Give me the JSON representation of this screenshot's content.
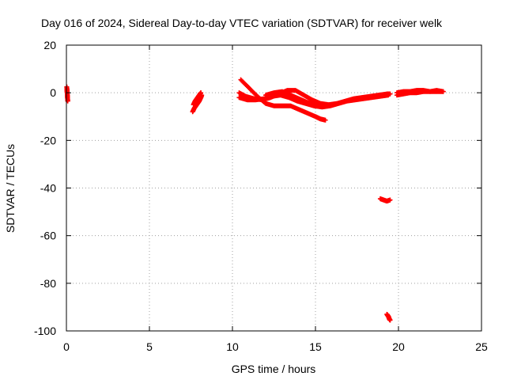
{
  "chart_data": {
    "type": "scatter",
    "title": "Day 016 of 2024, Sidereal Day-to-day VTEC variation (SDTVAR) for receiver welk",
    "xlabel": "GPS time / hours",
    "ylabel": "SDTVAR / TECUs",
    "xlim": [
      0,
      25
    ],
    "ylim": [
      -100,
      20
    ],
    "xticks": [
      0,
      5,
      10,
      15,
      20,
      25
    ],
    "yticks": [
      -100,
      -80,
      -60,
      -40,
      -20,
      0,
      20
    ],
    "grid": true,
    "marker": "+",
    "color": "#ff0000",
    "series": [
      {
        "segments": [
          [
            [
              0.02,
              2.5
            ],
            [
              0.03,
              1.5
            ],
            [
              0.04,
              0.5
            ],
            [
              0.05,
              -0.5
            ],
            [
              0.06,
              -1.5
            ],
            [
              0.07,
              -2.5
            ],
            [
              0.08,
              -3.5
            ]
          ],
          [
            [
              7.6,
              -8
            ],
            [
              7.7,
              -6.5
            ],
            [
              7.8,
              -5.5
            ],
            [
              7.9,
              -4.5
            ],
            [
              8.0,
              -3.5
            ],
            [
              8.1,
              -2
            ],
            [
              8.15,
              -1
            ]
          ],
          [
            [
              7.65,
              -5
            ],
            [
              7.75,
              -3.5
            ],
            [
              7.85,
              -2.5
            ],
            [
              7.95,
              -1.5
            ],
            [
              8.05,
              -0.5
            ],
            [
              8.1,
              0
            ]
          ],
          [
            [
              10.5,
              5.5
            ],
            [
              11.0,
              2
            ],
            [
              11.5,
              -1.5
            ],
            [
              12.0,
              -4.5
            ],
            [
              12.5,
              -5.5
            ],
            [
              13.0,
              -5.5
            ],
            [
              13.5,
              -5.5
            ],
            [
              14.0,
              -7
            ],
            [
              14.5,
              -8.5
            ],
            [
              15.0,
              -10
            ],
            [
              15.3,
              -11
            ],
            [
              15.6,
              -11.5
            ]
          ],
          [
            [
              10.4,
              0
            ],
            [
              10.8,
              -1.5
            ],
            [
              11.3,
              -2.5
            ],
            [
              11.8,
              -3
            ],
            [
              12.3,
              -2
            ],
            [
              12.8,
              -0.5
            ],
            [
              13.3,
              1
            ],
            [
              13.8,
              1
            ],
            [
              14.3,
              -1
            ],
            [
              14.8,
              -3
            ],
            [
              15.3,
              -4.5
            ],
            [
              15.8,
              -5
            ],
            [
              16.3,
              -4.5
            ],
            [
              16.8,
              -3.5
            ],
            [
              17.3,
              -2.5
            ],
            [
              17.8,
              -2
            ],
            [
              18.3,
              -1.5
            ],
            [
              18.8,
              -1
            ],
            [
              19.3,
              -0.5
            ],
            [
              19.5,
              -0.5
            ]
          ],
          [
            [
              10.4,
              -2
            ],
            [
              10.9,
              -3
            ],
            [
              11.4,
              -3
            ],
            [
              11.9,
              -2.5
            ],
            [
              12.4,
              -1.5
            ],
            [
              12.9,
              -1
            ],
            [
              13.4,
              -2
            ],
            [
              13.9,
              -3.5
            ],
            [
              14.4,
              -4.5
            ],
            [
              14.9,
              -5.5
            ],
            [
              15.4,
              -6
            ],
            [
              15.9,
              -5.5
            ],
            [
              16.4,
              -4.5
            ],
            [
              16.9,
              -3.5
            ],
            [
              17.4,
              -3
            ],
            [
              17.9,
              -2.5
            ],
            [
              18.4,
              -2
            ],
            [
              18.9,
              -1.5
            ],
            [
              19.4,
              -1
            ]
          ],
          [
            [
              12.0,
              -1
            ],
            [
              12.5,
              0
            ],
            [
              13.0,
              0.5
            ],
            [
              13.5,
              -1
            ],
            [
              14.0,
              -2.5
            ],
            [
              14.5,
              -4
            ],
            [
              15.0,
              -5
            ],
            [
              15.5,
              -5.5
            ]
          ],
          [
            [
              18.9,
              -44.5
            ],
            [
              19.1,
              -45
            ],
            [
              19.3,
              -45.5
            ],
            [
              19.5,
              -45
            ]
          ],
          [
            [
              19.3,
              -93
            ],
            [
              19.35,
              -93.5
            ],
            [
              19.4,
              -94
            ],
            [
              19.45,
              -95
            ],
            [
              19.5,
              -95.5
            ]
          ],
          [
            [
              19.9,
              -1
            ],
            [
              20.3,
              -0.5
            ],
            [
              20.7,
              0
            ],
            [
              21.1,
              0
            ],
            [
              21.5,
              0.5
            ],
            [
              21.9,
              0.5
            ],
            [
              22.3,
              0.5
            ],
            [
              22.7,
              0.5
            ]
          ],
          [
            [
              19.9,
              0
            ],
            [
              20.3,
              0.5
            ],
            [
              20.7,
              0.5
            ],
            [
              21.1,
              1
            ],
            [
              21.5,
              1
            ],
            [
              21.9,
              0.5
            ],
            [
              22.3,
              1
            ],
            [
              22.7,
              0.5
            ]
          ]
        ]
      }
    ]
  }
}
